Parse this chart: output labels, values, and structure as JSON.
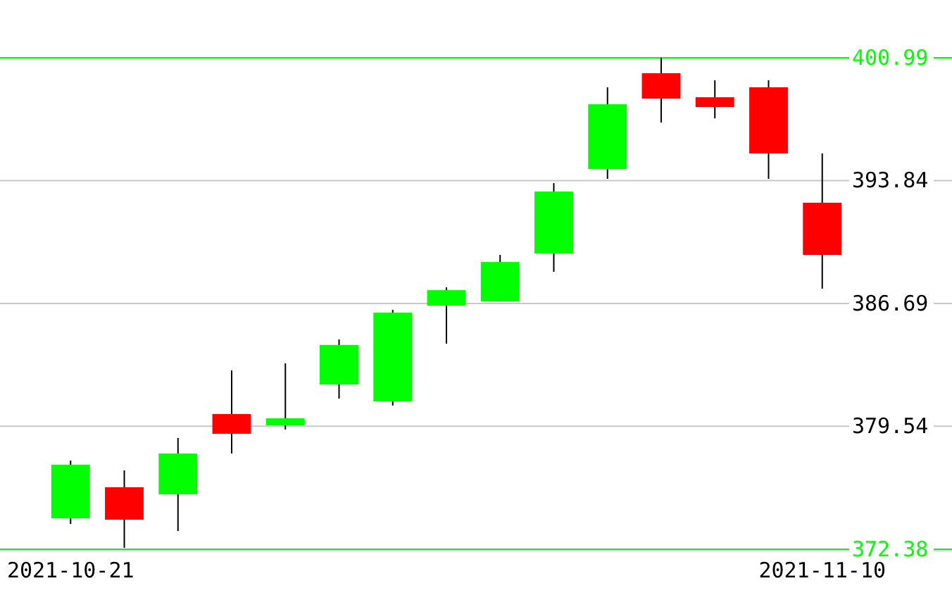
{
  "chart_data": {
    "type": "candlestick",
    "categories": [
      "2021-10-21",
      null,
      null,
      null,
      null,
      null,
      null,
      null,
      null,
      null,
      null,
      null,
      null,
      null,
      "2021-11-10"
    ],
    "ohlc": [
      [
        374.18,
        377.54,
        373.85,
        377.3
      ],
      [
        375.99,
        376.97,
        372.46,
        374.1
      ],
      [
        375.58,
        378.86,
        373.44,
        377.95
      ],
      [
        380.25,
        382.79,
        377.95,
        379.1
      ],
      [
        379.59,
        383.2,
        379.35,
        380.0
      ],
      [
        381.97,
        384.59,
        381.15,
        384.27
      ],
      [
        380.99,
        386.32,
        380.74,
        386.15
      ],
      [
        386.56,
        387.63,
        384.35,
        387.46
      ],
      [
        386.81,
        389.51,
        386.81,
        389.1
      ],
      [
        389.59,
        393.69,
        388.53,
        393.2
      ],
      [
        394.51,
        399.27,
        393.94,
        398.28
      ],
      [
        400.09,
        400.99,
        397.22,
        398.61
      ],
      [
        398.69,
        399.68,
        397.46,
        398.12
      ],
      [
        399.27,
        399.68,
        393.94,
        395.42
      ],
      [
        392.55,
        395.42,
        387.55,
        389.51
      ]
    ],
    "colors": [
      "#00ff00",
      "#ff0000",
      "#00ff00",
      "#ff0000",
      "#00ff00",
      "#00ff00",
      "#00ff00",
      "#00ff00",
      "#00ff00",
      "#00ff00",
      "#00ff00",
      "#ff0000",
      "#ff0000",
      "#ff0000",
      "#ff0000"
    ],
    "ylim": [
      372.38,
      400.99
    ],
    "yticks": [
      372.38,
      379.54,
      386.69,
      393.84,
      400.99
    ],
    "grid": "y"
  }
}
